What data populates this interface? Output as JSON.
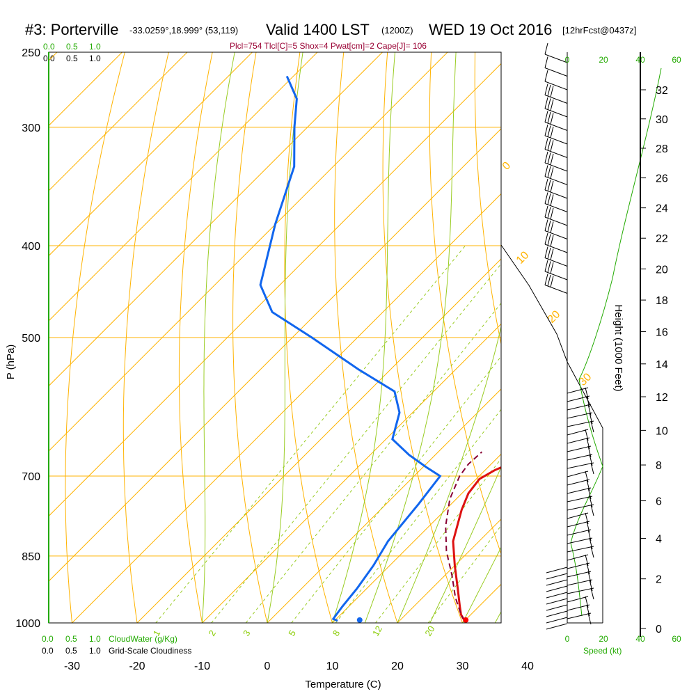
{
  "header": {
    "station": "#3: Porterville",
    "coords": "-33.0259°,18.999° (53,119)",
    "valid": "Valid 1400 LST",
    "valid_z": "(1200Z)",
    "date": "WED 19 Oct 2016",
    "forecast": "[12hrFcst@0437z]",
    "stats": "Plcl=754 Tlcl[C]=5 Shox=4 Pwat[cm]=2 Cape[J]= 106"
  },
  "scale_labels": {
    "cloudwater_top_vals": [
      "0.0",
      "0.5",
      "1.0"
    ],
    "cloudiness_top_vals": [
      "0.0",
      "0.5",
      "1.0"
    ],
    "cloudwater_bottom_vals": [
      "0.0",
      "0.5",
      "1.0"
    ],
    "cloudwater_label": "CloudWater (g/Kg)",
    "cloudiness_bottom_vals": [
      "0.0",
      "0.5",
      "1.0"
    ],
    "cloudiness_label": "Grid-Scale Cloudiness",
    "speed_ticks": [
      "0",
      "20",
      "40",
      "60"
    ],
    "speed_label": "Speed (kt)"
  },
  "chart_data": {
    "type": "line",
    "title": "#3: Porterville Valid 1400 LST (1200Z) WED 19 Oct 2016",
    "xlabel": "Temperature (C)",
    "ylabel": "P (hPa)",
    "y2label": "Height (1000 Feet)",
    "xlim": [
      -35,
      36
    ],
    "ylim_hpa": [
      1000,
      250
    ],
    "pressure_ticks": [
      250,
      300,
      400,
      500,
      700,
      850,
      1000
    ],
    "temperature_ticks": [
      -30,
      -20,
      -10,
      0,
      10,
      20,
      30,
      40
    ],
    "height_ticks_kft": [
      0,
      2,
      4,
      6,
      8,
      10,
      12,
      14,
      16,
      18,
      20,
      22,
      24,
      26,
      28,
      30,
      32
    ],
    "isotherm_labels": [
      10,
      0,
      -10,
      -20,
      -30
    ],
    "adiabat_labels": [
      0,
      10,
      20,
      30
    ],
    "mixing_ratio_labels": [
      1,
      2,
      3,
      5,
      8,
      12,
      20
    ],
    "series": [
      {
        "name": "Temperature",
        "color": "#dd1111",
        "points": [
          [
            29.5,
            990
          ],
          [
            28.5,
            980
          ],
          [
            27,
            960
          ],
          [
            24,
            920
          ],
          [
            20,
            870
          ],
          [
            16,
            820
          ],
          [
            12.5,
            760
          ],
          [
            11,
            730
          ],
          [
            10.5,
            705
          ],
          [
            11.5,
            690
          ],
          [
            14,
            670
          ],
          [
            14.5,
            650
          ],
          [
            14.2,
            630
          ],
          [
            13.5,
            590
          ],
          [
            11.5,
            560
          ],
          [
            9,
            530
          ],
          [
            5,
            500
          ],
          [
            -2,
            450
          ],
          [
            -8,
            400
          ],
          [
            -15,
            360
          ],
          [
            -21,
            330
          ],
          [
            -26,
            300
          ],
          [
            -31,
            280
          ],
          [
            -35,
            265
          ]
        ]
      },
      {
        "name": "Dewpoint",
        "color": "#1166ee",
        "points": [
          [
            10.5,
            995
          ],
          [
            9.5,
            990
          ],
          [
            9,
            960
          ],
          [
            8.5,
            920
          ],
          [
            7.5,
            870
          ],
          [
            6,
            820
          ],
          [
            5,
            750
          ],
          [
            4,
            700
          ],
          [
            0.5,
            685
          ],
          [
            -4,
            665
          ],
          [
            -9,
            640
          ],
          [
            -12,
            600
          ],
          [
            -16,
            570
          ],
          [
            -25,
            540
          ],
          [
            -37,
            500
          ],
          [
            -47,
            470
          ],
          [
            -53,
            440
          ],
          [
            -60,
            380
          ],
          [
            -66,
            330
          ],
          [
            -72,
            300
          ],
          [
            -76,
            280
          ],
          [
            -81,
            265
          ]
        ]
      },
      {
        "name": "Parcel",
        "color": "#880033",
        "points": [
          [
            30,
            995
          ],
          [
            28.5,
            980
          ],
          [
            25,
            940
          ],
          [
            21,
            890
          ],
          [
            16.5,
            840
          ],
          [
            12.5,
            790
          ],
          [
            9,
            740
          ],
          [
            7,
            700
          ],
          [
            6.5,
            680
          ],
          [
            6.7,
            660
          ]
        ]
      }
    ],
    "surface_markers": [
      {
        "name": "surface-temperature",
        "t": 30.5,
        "p": 993,
        "color": "#ff0000"
      },
      {
        "name": "surface-dewpoint",
        "t": 14.2,
        "p": 993,
        "color": "#1166ee"
      }
    ]
  }
}
